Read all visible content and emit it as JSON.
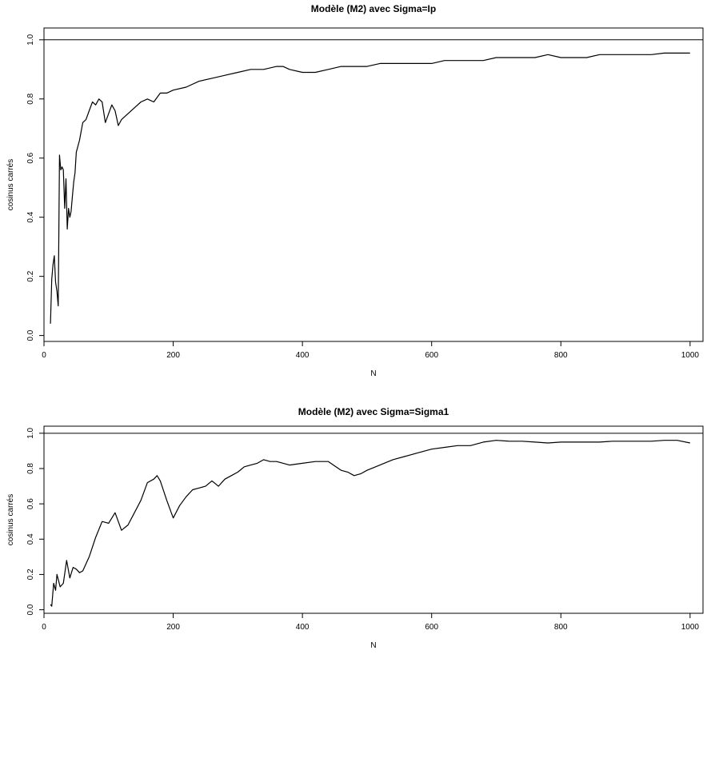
{
  "chart_data": [
    {
      "type": "line",
      "title": "Modèle (M2) avec Sigma=Ip",
      "xlabel": "N",
      "ylabel": "cosinus carrés",
      "xlim": [
        0,
        1020
      ],
      "ylim": [
        -0.02,
        1.04
      ],
      "x_ticks": [
        0,
        200,
        400,
        600,
        800,
        1000
      ],
      "y_ticks": [
        0.0,
        0.2,
        0.4,
        0.6,
        0.8,
        1.0
      ],
      "x_tick_labels": [
        "0",
        "200",
        "400",
        "600",
        "800",
        "1000"
      ],
      "y_tick_labels": [
        "0.0",
        "0.2",
        "0.4",
        "0.6",
        "0.8",
        "1.0"
      ],
      "reference_line": 1.0,
      "grid": false,
      "series": [
        {
          "x": [
            10,
            12,
            14,
            16,
            18,
            20,
            22,
            24,
            26,
            28,
            30,
            32,
            34,
            36,
            38,
            40,
            42,
            44,
            46,
            48,
            50,
            55,
            60,
            65,
            70,
            75,
            80,
            85,
            90,
            95,
            100,
            105,
            110,
            115,
            120,
            130,
            140,
            150,
            160,
            170,
            180,
            190,
            200,
            220,
            240,
            260,
            280,
            300,
            320,
            340,
            360,
            370,
            380,
            400,
            420,
            440,
            460,
            480,
            500,
            520,
            540,
            560,
            580,
            600,
            620,
            640,
            660,
            680,
            700,
            720,
            740,
            760,
            780,
            800,
            820,
            840,
            860,
            880,
            900,
            920,
            940,
            960,
            980,
            1000
          ],
          "y": [
            0.04,
            0.19,
            0.24,
            0.27,
            0.18,
            0.15,
            0.1,
            0.61,
            0.56,
            0.57,
            0.56,
            0.43,
            0.53,
            0.36,
            0.43,
            0.4,
            0.42,
            0.47,
            0.52,
            0.55,
            0.62,
            0.66,
            0.72,
            0.73,
            0.76,
            0.79,
            0.78,
            0.8,
            0.79,
            0.72,
            0.75,
            0.78,
            0.76,
            0.71,
            0.73,
            0.75,
            0.77,
            0.79,
            0.8,
            0.79,
            0.82,
            0.82,
            0.83,
            0.84,
            0.86,
            0.87,
            0.88,
            0.89,
            0.9,
            0.9,
            0.91,
            0.91,
            0.9,
            0.89,
            0.89,
            0.9,
            0.91,
            0.91,
            0.91,
            0.92,
            0.92,
            0.92,
            0.92,
            0.92,
            0.93,
            0.93,
            0.93,
            0.93,
            0.94,
            0.94,
            0.94,
            0.94,
            0.95,
            0.94,
            0.94,
            0.94,
            0.95,
            0.95,
            0.95,
            0.95,
            0.95,
            0.955,
            0.955,
            0.955
          ]
        }
      ]
    },
    {
      "type": "line",
      "title": "Modèle (M2) avec Sigma=Sigma1",
      "xlabel": "N",
      "ylabel": "cosinus carrés",
      "xlim": [
        0,
        1020
      ],
      "ylim": [
        -0.02,
        1.04
      ],
      "x_ticks": [
        0,
        200,
        400,
        600,
        800,
        1000
      ],
      "y_ticks": [
        0.0,
        0.2,
        0.4,
        0.6,
        0.8,
        1.0
      ],
      "x_tick_labels": [
        "0",
        "200",
        "400",
        "600",
        "800",
        "1000"
      ],
      "y_tick_labels": [
        "0.0",
        "0.2",
        "0.4",
        "0.6",
        "0.8",
        "1.0"
      ],
      "reference_line": 1.0,
      "grid": false,
      "series": [
        {
          "x": [
            10,
            12,
            15,
            18,
            20,
            25,
            30,
            35,
            40,
            45,
            50,
            55,
            60,
            70,
            80,
            90,
            100,
            110,
            120,
            130,
            140,
            150,
            160,
            170,
            175,
            180,
            190,
            200,
            210,
            220,
            230,
            240,
            250,
            260,
            270,
            280,
            290,
            300,
            310,
            320,
            330,
            340,
            350,
            360,
            380,
            400,
            420,
            440,
            460,
            470,
            480,
            490,
            500,
            520,
            540,
            560,
            580,
            600,
            620,
            640,
            660,
            680,
            700,
            720,
            740,
            760,
            780,
            800,
            820,
            840,
            860,
            880,
            900,
            920,
            940,
            960,
            980,
            1000
          ],
          "y": [
            0.03,
            0.02,
            0.15,
            0.11,
            0.2,
            0.13,
            0.15,
            0.28,
            0.18,
            0.24,
            0.23,
            0.21,
            0.22,
            0.3,
            0.41,
            0.5,
            0.49,
            0.55,
            0.45,
            0.48,
            0.55,
            0.62,
            0.72,
            0.74,
            0.76,
            0.73,
            0.62,
            0.52,
            0.59,
            0.64,
            0.68,
            0.69,
            0.7,
            0.73,
            0.7,
            0.74,
            0.76,
            0.78,
            0.81,
            0.82,
            0.83,
            0.85,
            0.84,
            0.84,
            0.82,
            0.83,
            0.84,
            0.84,
            0.79,
            0.78,
            0.76,
            0.77,
            0.79,
            0.82,
            0.85,
            0.87,
            0.89,
            0.91,
            0.92,
            0.93,
            0.93,
            0.95,
            0.96,
            0.955,
            0.955,
            0.95,
            0.945,
            0.95,
            0.95,
            0.95,
            0.95,
            0.955,
            0.955,
            0.955,
            0.955,
            0.96,
            0.96,
            0.945
          ]
        }
      ]
    }
  ]
}
